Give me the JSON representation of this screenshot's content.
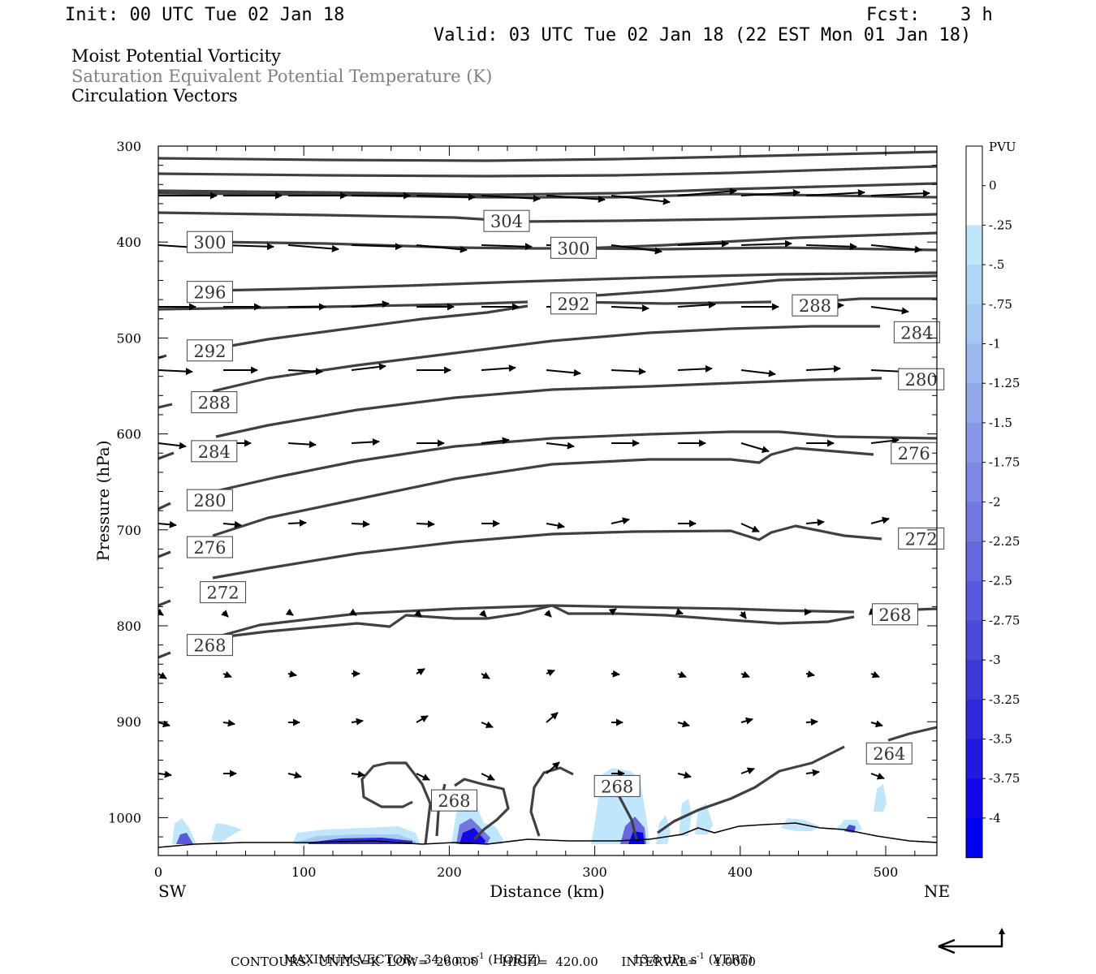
{
  "header": {
    "init": "Init: 00 UTC Tue 02 Jan 18",
    "fcst_label": "Fcst:",
    "fcst_value": "3 h",
    "valid": "Valid: 03 UTC Tue 02 Jan 18 (22 EST Mon 01 Jan 18)"
  },
  "titles": {
    "line1": "Moist Potential Vorticity",
    "line2": "Saturation Equivalent Potential Temperature (K)",
    "line3": "Circulation Vectors",
    "line2_color": "#808080"
  },
  "footer": {
    "max_vector": "MAXIMUM VECTOR:  34.0 m s",
    "max_vector_exp": "-1",
    "horiz": " (HORIZ)",
    "vert_val": "13.8 dPa s",
    "vert_exp": "-1",
    "vert": " (VERT)",
    "contours": "CONTOURS:  UNITS=K  LOW=  260.00      HIGH=  420.00      INTERVAL=    4.0000"
  },
  "chart_data": {
    "type": "cross-section",
    "xlabel": "Distance (km)",
    "ylabel": "Pressure (hPa)",
    "x_ticks": [
      0,
      100,
      200,
      300,
      400,
      500
    ],
    "y_ticks": [
      300,
      400,
      500,
      600,
      700,
      800,
      900,
      1000
    ],
    "xlim": [
      0,
      535
    ],
    "ylim": [
      300,
      1040
    ],
    "y_reversed": true,
    "x_end_labels": {
      "left": "SW",
      "right": "NE"
    },
    "colorbar": {
      "title": "PVU",
      "labels": [
        "0",
        "-.25",
        "-.5",
        "-.75",
        "-1",
        "-1.25",
        "-1.5",
        "-1.75",
        "-2",
        "-2.25",
        "-2.5",
        "-2.75",
        "-3",
        "-3.25",
        "-3.5",
        "-3.75",
        "-4"
      ],
      "colors": [
        "#ffffff",
        "#ffffff",
        "#bfe6fa",
        "#b0d8f6",
        "#a6c8f2",
        "#9cb8ee",
        "#92a8ea",
        "#8898e6",
        "#7e88e3",
        "#7378e0",
        "#6868de",
        "#5a58dc",
        "#4c48da",
        "#3e38d8",
        "#3028da",
        "#2218e0",
        "#1408e8",
        "#0000f0"
      ]
    },
    "contour_labels": [
      {
        "value": "304",
        "x": 226,
        "p": 378
      },
      {
        "value": "300",
        "x": 22,
        "p": 400
      },
      {
        "value": "300",
        "x": 272,
        "p": 406
      },
      {
        "value": "296",
        "x": 22,
        "p": 452
      },
      {
        "value": "292",
        "x": 272,
        "p": 464
      },
      {
        "value": "288",
        "x": 438,
        "p": 466
      },
      {
        "value": "292",
        "x": 22,
        "p": 513
      },
      {
        "value": "284",
        "x": 508,
        "p": 494
      },
      {
        "value": "288",
        "x": 25,
        "p": 567
      },
      {
        "value": "280",
        "x": 511,
        "p": 543
      },
      {
        "value": "284",
        "x": 25,
        "p": 618
      },
      {
        "value": "276",
        "x": 506,
        "p": 620
      },
      {
        "value": "280",
        "x": 22,
        "p": 669
      },
      {
        "value": "276",
        "x": 22,
        "p": 718
      },
      {
        "value": "272",
        "x": 511,
        "p": 709
      },
      {
        "value": "272",
        "x": 31,
        "p": 765
      },
      {
        "value": "268",
        "x": 22,
        "p": 820
      },
      {
        "value": "268",
        "x": 493,
        "p": 788
      },
      {
        "value": "264",
        "x": 489,
        "p": 933
      },
      {
        "value": "268",
        "x": 190,
        "p": 982
      },
      {
        "value": "268",
        "x": 302,
        "p": 967
      }
    ]
  }
}
